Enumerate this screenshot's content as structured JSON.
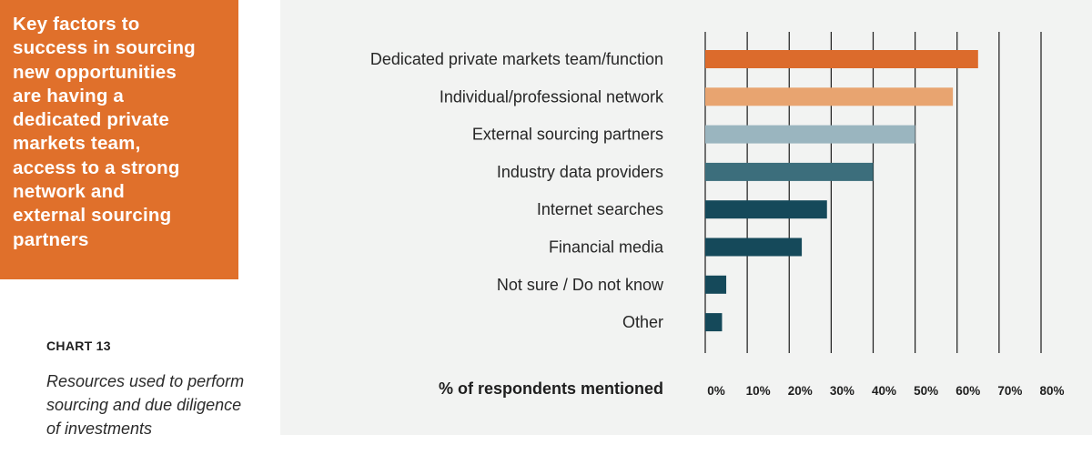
{
  "callout": {
    "lines": [
      "Key factors to",
      "success in sourcing",
      "new opportunities",
      "are having a",
      "dedicated private",
      "markets team,",
      "access to a strong",
      "network and",
      "external sourcing",
      "partners"
    ]
  },
  "chart_number": "CHART 13",
  "chart_caption": "Resources used to perform sourcing and due diligence of investments",
  "chart_data": {
    "type": "bar",
    "orientation": "horizontal",
    "categories": [
      "Dedicated private markets team/function",
      "Individual/professional network",
      "External sourcing partners",
      "Industry data providers",
      "Internet searches",
      "Financial media",
      "Not sure / Do not know",
      "Other"
    ],
    "values": [
      65,
      59,
      50,
      40,
      29,
      23,
      5,
      4
    ],
    "bar_colors": [
      "#dc6b2c",
      "#e8a470",
      "#9ab5bf",
      "#3c6e7c",
      "#15495a",
      "#15495a",
      "#15495a",
      "#15495a"
    ],
    "xlabel": "% of respondents mentioned",
    "xlim": [
      0,
      80
    ],
    "xticks": [
      "0%",
      "10%",
      "20%",
      "30%",
      "40%",
      "50%",
      "60%",
      "70%",
      "80%"
    ],
    "grid": true
  }
}
